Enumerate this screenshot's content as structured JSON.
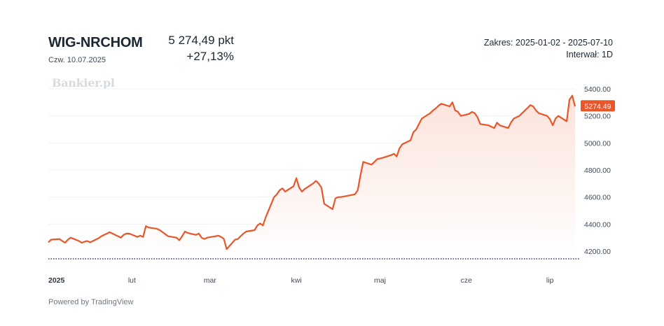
{
  "header": {
    "index_name": "WIG-NRCHOM",
    "date": "Czw. 10.07.2025",
    "price": "5 274,49 pkt",
    "change": "+27,13%",
    "range": "Zakres: 2025-01-02 - 2025-07-10",
    "interval": "Interwał: 1D"
  },
  "watermark": "Bankier.pl",
  "footer": {
    "powered_by": "Powered by TradingView"
  },
  "colors": {
    "line": "#e8562a",
    "area_top": "#fbe3db",
    "area_bottom": "#ffffff",
    "grid": "#eef1f4",
    "baseline": "#2a3a8c",
    "text": "#1a2733"
  },
  "chart_data": {
    "type": "area",
    "title": "",
    "xlabel": "",
    "ylabel": "",
    "ylim": [
      4150,
      5500
    ],
    "yticks": [
      "4200.00",
      "4400.00",
      "4600.00",
      "4800.00",
      "5000.00",
      "5200.00",
      "5400.00"
    ],
    "ytick_values": [
      4200,
      4400,
      4600,
      4800,
      5000,
      5200,
      5400
    ],
    "xticks": [
      "2025",
      "lut",
      "mar",
      "kwi",
      "maj",
      "cze",
      "lip"
    ],
    "xtick_dates": [
      "2025-01-01",
      "2025-02-01",
      "2025-03-01",
      "2025-04-01",
      "2025-05-01",
      "2025-06-01",
      "2025-07-01"
    ],
    "xlim": [
      "2025-01-02",
      "2025-07-10"
    ],
    "grid": true,
    "last_value_label": "5274.49",
    "series": [
      {
        "x": [
          "2025-01-02",
          "2025-01-03",
          "2025-01-06",
          "2025-01-07",
          "2025-01-08",
          "2025-01-09",
          "2025-01-10",
          "2025-01-13",
          "2025-01-14",
          "2025-01-15",
          "2025-01-16",
          "2025-01-17",
          "2025-01-20",
          "2025-01-21",
          "2025-01-22",
          "2025-01-23",
          "2025-01-24",
          "2025-01-27",
          "2025-01-28",
          "2025-01-29",
          "2025-01-30",
          "2025-01-31",
          "2025-02-03",
          "2025-02-04",
          "2025-02-05",
          "2025-02-06",
          "2025-02-07",
          "2025-02-10",
          "2025-02-11",
          "2025-02-12",
          "2025-02-13",
          "2025-02-14",
          "2025-02-17",
          "2025-02-18",
          "2025-02-19",
          "2025-02-20",
          "2025-02-21",
          "2025-02-24",
          "2025-02-25",
          "2025-02-26",
          "2025-02-27",
          "2025-02-28",
          "2025-03-03",
          "2025-03-04",
          "2025-03-05",
          "2025-03-06",
          "2025-03-07",
          "2025-03-10",
          "2025-03-11",
          "2025-03-12",
          "2025-03-13",
          "2025-03-14",
          "2025-03-17",
          "2025-03-18",
          "2025-03-19",
          "2025-03-20",
          "2025-03-21",
          "2025-03-24",
          "2025-03-25",
          "2025-03-26",
          "2025-03-27",
          "2025-03-28",
          "2025-03-31",
          "2025-04-01",
          "2025-04-02",
          "2025-04-03",
          "2025-04-04",
          "2025-04-07",
          "2025-04-08",
          "2025-04-09",
          "2025-04-10",
          "2025-04-11",
          "2025-04-14",
          "2025-04-15",
          "2025-04-16",
          "2025-04-17",
          "2025-04-22",
          "2025-04-23",
          "2025-04-24",
          "2025-04-25",
          "2025-04-28",
          "2025-04-29",
          "2025-04-30",
          "2025-05-02",
          "2025-05-05",
          "2025-05-06",
          "2025-05-07",
          "2025-05-08",
          "2025-05-09",
          "2025-05-12",
          "2025-05-13",
          "2025-05-14",
          "2025-05-15",
          "2025-05-16",
          "2025-05-19",
          "2025-05-20",
          "2025-05-21",
          "2025-05-22",
          "2025-05-23",
          "2025-05-26",
          "2025-05-27",
          "2025-05-28",
          "2025-05-29",
          "2025-05-30",
          "2025-06-02",
          "2025-06-03",
          "2025-06-04",
          "2025-06-05",
          "2025-06-06",
          "2025-06-09",
          "2025-06-10",
          "2025-06-11",
          "2025-06-12",
          "2025-06-13",
          "2025-06-16",
          "2025-06-17",
          "2025-06-18",
          "2025-06-20",
          "2025-06-23",
          "2025-06-24",
          "2025-06-25",
          "2025-06-26",
          "2025-06-27",
          "2025-06-30",
          "2025-07-01",
          "2025-07-02",
          "2025-07-03",
          "2025-07-04",
          "2025-07-07",
          "2025-07-08",
          "2025-07-09",
          "2025-07-10"
        ],
        "values": [
          4265,
          4285,
          4290,
          4275,
          4262,
          4285,
          4300,
          4275,
          4262,
          4270,
          4275,
          4265,
          4295,
          4310,
          4320,
          4330,
          4340,
          4310,
          4300,
          4320,
          4330,
          4330,
          4305,
          4315,
          4305,
          4385,
          4375,
          4365,
          4355,
          4340,
          4325,
          4310,
          4300,
          4280,
          4310,
          4345,
          4335,
          4320,
          4330,
          4300,
          4290,
          4300,
          4310,
          4315,
          4305,
          4290,
          4215,
          4285,
          4290,
          4310,
          4330,
          4345,
          4355,
          4390,
          4405,
          4390,
          4450,
          4600,
          4620,
          4650,
          4665,
          4640,
          4680,
          4740,
          4670,
          4640,
          4660,
          4700,
          4720,
          4700,
          4670,
          4550,
          4510,
          4590,
          4600,
          4600,
          4620,
          4650,
          4760,
          4860,
          4840,
          4860,
          4880,
          4890,
          4910,
          4920,
          4900,
          4960,
          4990,
          5020,
          5080,
          5100,
          5140,
          5180,
          5220,
          5240,
          5255,
          5275,
          5290,
          5270,
          5300,
          5240,
          5230,
          5200,
          5215,
          5230,
          5220,
          5190,
          5140,
          5130,
          5120,
          5110,
          5150,
          5130,
          5110,
          5150,
          5180,
          5200,
          5260,
          5280,
          5270,
          5240,
          5220,
          5200,
          5175,
          5130,
          5180,
          5200,
          5160,
          5320,
          5350,
          5270
        ]
      }
    ]
  }
}
